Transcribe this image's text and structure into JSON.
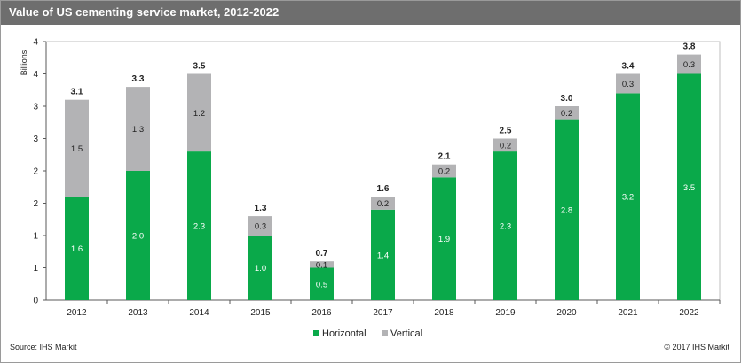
{
  "header": {
    "title": "Value of US cementing service market, 2012-2022"
  },
  "footer": {
    "source": "Source: IHS Markit",
    "copyright": "© 2017 IHS Markit"
  },
  "colors": {
    "horizontal": "#0aa94a",
    "vertical": "#b3b3b5",
    "title_bar": "#6e6e6e"
  },
  "chart_data": {
    "type": "bar",
    "stacked": true,
    "ylabel": "Billions",
    "y_ticks": [
      "4",
      "4",
      "3",
      "3",
      "2",
      "2",
      "1",
      "1",
      "0"
    ],
    "y_tick_values": [
      4.0,
      3.5,
      3.0,
      2.5,
      2.0,
      1.5,
      1.0,
      0.5,
      0.0
    ],
    "ylim": [
      0,
      4.0
    ],
    "categories": [
      "2012",
      "2013",
      "2014",
      "2015",
      "2016",
      "2017",
      "2018",
      "2019",
      "2020",
      "2021",
      "2022"
    ],
    "series": [
      {
        "name": "Horizontal",
        "values": [
          1.6,
          2.0,
          2.3,
          1.0,
          0.5,
          1.4,
          1.9,
          2.3,
          2.8,
          3.2,
          3.5
        ],
        "labels": [
          "1.6",
          "2.0",
          "2.3",
          "1.0",
          "0.5",
          "1.4",
          "1.9",
          "2.3",
          "2.8",
          "3.2",
          "3.5"
        ]
      },
      {
        "name": "Vertical",
        "values": [
          1.5,
          1.3,
          1.2,
          0.3,
          0.1,
          0.2,
          0.2,
          0.2,
          0.2,
          0.3,
          0.3
        ],
        "labels": [
          "1.5",
          "1.3",
          "1.2",
          "0.3",
          "0.1",
          "0.2",
          "0.2",
          "0.2",
          "0.2",
          "0.3",
          "0.3"
        ]
      }
    ],
    "totals": [
      "3.1",
      "3.3",
      "3.5",
      "1.3",
      "0.7",
      "1.6",
      "2.1",
      "2.5",
      "3.0",
      "3.4",
      "3.8"
    ],
    "legend_position": "bottom"
  }
}
